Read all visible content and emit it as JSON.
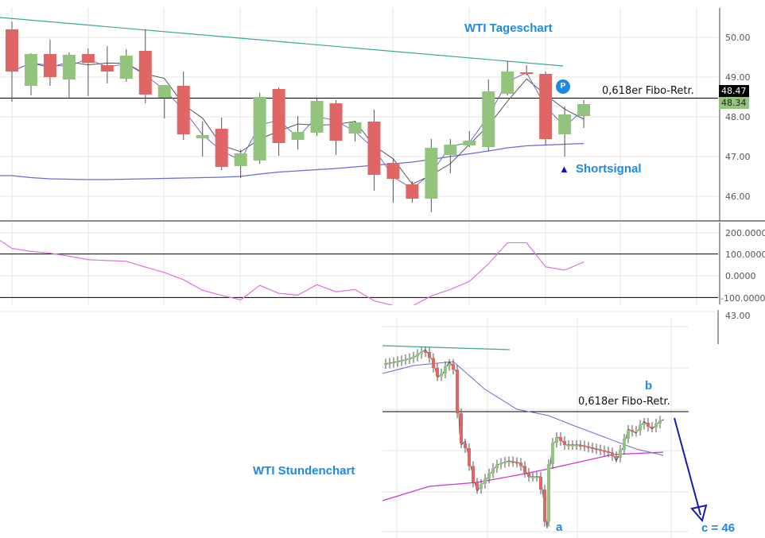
{
  "labels": {
    "daily_title": "WTI Tageschart",
    "hourly_title": "WTI Stundenchart",
    "fibo_daily": "0,618er Fibo-Retr.",
    "fibo_hourly": "0,618er Fibo-Retr.",
    "shortsignal": "Shortsignal",
    "shortsignal_marker": "▲",
    "p_badge": "P",
    "wave_a": "a",
    "wave_b": "b",
    "wave_c": "c = 46"
  },
  "price_axis": {
    "ticks": [
      "50.00",
      "49.00",
      "48.00",
      "47.00",
      "46.00"
    ],
    "values": [
      50,
      49,
      48,
      47,
      46
    ]
  },
  "price_tags": [
    {
      "text": "48.47",
      "value": 48.47,
      "bg": "#000000",
      "fg": "#ffffff"
    },
    {
      "text": "48.34",
      "value": 48.34,
      "bg": "#93c47d",
      "fg": "#222222"
    }
  ],
  "cci_axis": {
    "ticks": [
      "200.0000",
      "100.0000",
      "0.0000",
      "-100.0000"
    ],
    "values": [
      200,
      100,
      0,
      -100
    ]
  },
  "hourly_axis": {
    "ticks": [
      "43.00"
    ]
  },
  "colors": {
    "up": "#93c47d",
    "down": "#e06666",
    "wick": "#555555",
    "trend": "#3aa89a",
    "ma_slow": "#6a6ad8",
    "ma_fast": "#555555",
    "cci": "#e070e0",
    "magenta_ma": "#d030d0",
    "label_blue": "#1e88e5",
    "arrow": "#1a1aa8"
  },
  "chart_data": [
    {
      "type": "candlestick",
      "title": "WTI Tageschart",
      "ylim": [
        45.4,
        50.8
      ],
      "grid": true,
      "hlines": [
        {
          "value": 48.47,
          "label": "0,618er Fibo-Retr."
        }
      ],
      "trendline": [
        50.5,
        49.28
      ],
      "ohlc": [
        [
          50.2,
          50.4,
          48.38,
          49.14
        ],
        [
          48.78,
          49.6,
          48.54,
          49.58
        ],
        [
          49.58,
          49.94,
          48.78,
          49.0
        ],
        [
          48.94,
          49.62,
          48.48,
          49.56
        ],
        [
          49.58,
          49.72,
          48.52,
          49.36
        ],
        [
          49.3,
          49.78,
          48.84,
          49.14
        ],
        [
          48.96,
          49.7,
          48.88,
          49.54
        ],
        [
          49.66,
          50.2,
          48.34,
          48.56
        ],
        [
          48.48,
          48.8,
          47.96,
          48.8
        ],
        [
          48.78,
          49.14,
          47.42,
          47.56
        ],
        [
          47.46,
          47.88,
          47.0,
          47.54
        ],
        [
          47.7,
          47.98,
          46.66,
          46.74
        ],
        [
          46.76,
          47.18,
          46.46,
          47.08
        ],
        [
          46.9,
          48.6,
          46.82,
          48.5
        ],
        [
          48.7,
          48.74,
          47.02,
          47.34
        ],
        [
          47.42,
          48.02,
          47.18,
          47.62
        ],
        [
          47.6,
          48.48,
          47.52,
          48.4
        ],
        [
          48.34,
          48.42,
          47.04,
          47.4
        ],
        [
          47.58,
          47.9,
          47.38,
          47.86
        ],
        [
          47.88,
          48.18,
          46.14,
          46.54
        ],
        [
          46.84,
          46.94,
          45.84,
          46.44
        ],
        [
          46.3,
          46.38,
          45.84,
          45.94
        ],
        [
          45.94,
          47.44,
          45.6,
          47.22
        ],
        [
          47.04,
          47.44,
          46.58,
          47.3
        ],
        [
          47.28,
          47.64,
          47.24,
          47.4
        ],
        [
          47.24,
          48.94,
          47.14,
          48.64
        ],
        [
          48.58,
          49.4,
          48.54,
          49.14
        ],
        [
          49.12,
          49.3,
          49.04,
          49.08
        ],
        [
          49.08,
          49.14,
          47.28,
          47.44
        ],
        [
          47.56,
          48.26,
          47.0,
          48.06
        ],
        [
          48.02,
          48.42,
          47.72,
          48.32
        ]
      ],
      "slow_ma": [
        46.52,
        46.47,
        46.44,
        46.43,
        46.42,
        46.42,
        46.43,
        46.44,
        46.45,
        46.46,
        46.47,
        46.48,
        46.5,
        46.56,
        46.61,
        46.64,
        46.67,
        46.7,
        46.74,
        46.78,
        46.82,
        46.86,
        46.93,
        47.0,
        47.07,
        47.14,
        47.22,
        47.27,
        47.29,
        47.31,
        47.33
      ]
    },
    {
      "type": "line",
      "ylim": [
        -150,
        250
      ],
      "hlines": [
        100,
        -100
      ],
      "values": [
        126,
        112,
        104,
        90,
        74,
        70,
        67,
        40,
        15,
        -18,
        -67,
        -90,
        -111,
        -44,
        -81,
        -89,
        -41,
        -74,
        -63,
        -115,
        -137,
        -140,
        -93,
        -63,
        -26,
        55,
        152,
        152,
        41,
        26,
        63
      ]
    }
  ]
}
